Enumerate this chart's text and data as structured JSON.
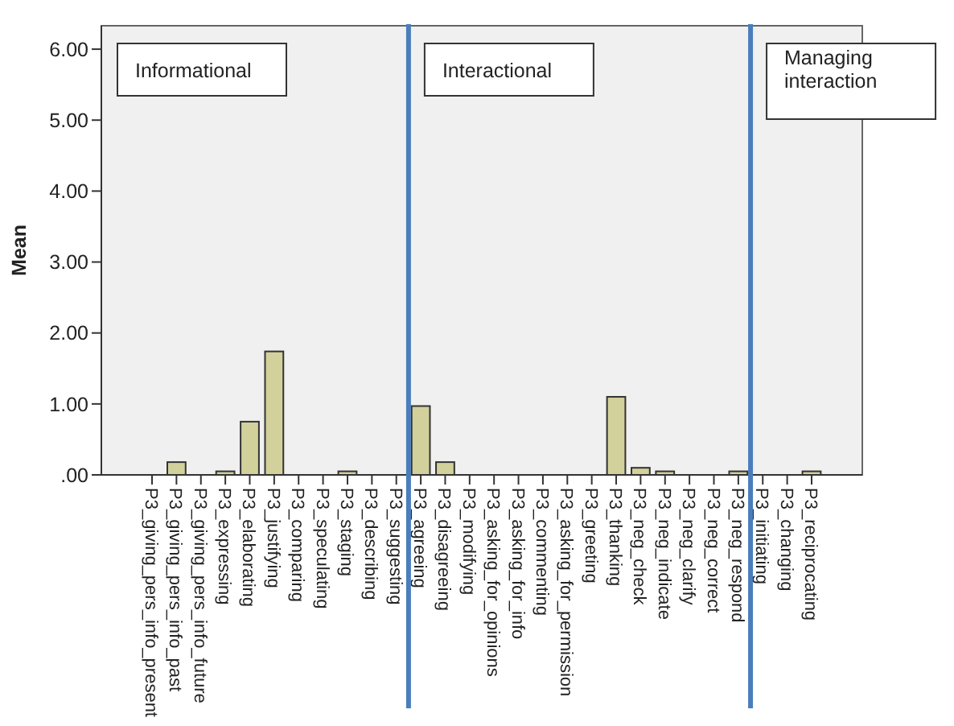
{
  "chart_data": {
    "type": "bar",
    "ylabel": "Mean",
    "categories": [
      "P3_giving_pers_info_present",
      "P3_giving_pers_info_past",
      "P3_giving_pers_info_future",
      "P3_expressing",
      "P3_elaborating",
      "P3_justifying",
      "P3_comparing",
      "P3_speculating",
      "P3_staging",
      "P3_describing",
      "P3_suggesting",
      "P3_agreeing",
      "P3_disagreeing",
      "P3_modifying",
      "P3_asking_for_opinions",
      "P3_asking_for_info",
      "P3_commenting",
      "P3_asking_for_permission",
      "P3_greeting",
      "P3_thanking",
      "P3_neg_check",
      "P3_neg_indicate",
      "P3_neg_clarify",
      "P3_neg_correct",
      "P3_neg_respond",
      "P3_initiating",
      "P3_changing",
      "P3_reciprocating"
    ],
    "values": [
      0,
      0.18,
      0,
      0.05,
      0.75,
      1.74,
      0,
      0,
      0.05,
      0,
      0,
      0.97,
      0.18,
      0,
      0,
      0,
      0,
      0,
      0,
      1.1,
      0.1,
      0.05,
      0,
      0,
      0.05,
      0,
      0,
      0.05
    ],
    "color": "#d3d19b",
    "ylim": [
      0,
      6.33
    ],
    "yticks": [
      {
        "value": 0,
        "label": ".00"
      },
      {
        "value": 1,
        "label": "1.00"
      },
      {
        "value": 2,
        "label": "2.00"
      },
      {
        "value": 3,
        "label": "3.00"
      },
      {
        "value": 4,
        "label": "4.00"
      },
      {
        "value": 5,
        "label": "5.00"
      },
      {
        "value": 6,
        "label": "6.00"
      }
    ],
    "annotations": [
      "Informational",
      "Interactional",
      "Managing interaction"
    ]
  }
}
